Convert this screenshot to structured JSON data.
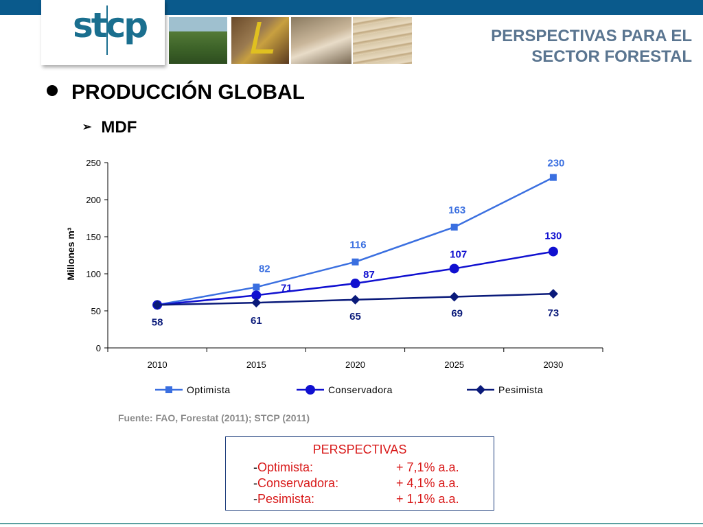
{
  "logo": {
    "text": "stcp"
  },
  "header": {
    "title_line1": "PERSPECTIVAS PARA EL",
    "title_line2": "SECTOR FORESTAL"
  },
  "bullets": {
    "main": "PRODUCCIÓN GLOBAL",
    "sub": "MDF"
  },
  "chart_data": {
    "type": "line",
    "title": "",
    "xlabel": "",
    "ylabel": "Millones m³",
    "categories": [
      "2010",
      "2015",
      "2020",
      "2025",
      "2030"
    ],
    "ylim": [
      0,
      250
    ],
    "yticks": [
      0,
      50,
      100,
      150,
      200,
      250
    ],
    "legend_position": "bottom",
    "grid": false,
    "series": [
      {
        "name": "Optimista",
        "values": [
          58,
          82,
          116,
          163,
          230
        ],
        "color": "#3a6fe0",
        "marker": "square"
      },
      {
        "name": "Conservadora",
        "values": [
          58,
          71,
          87,
          107,
          130
        ],
        "color": "#1010d0",
        "marker": "circle"
      },
      {
        "name": "Pesimista",
        "values": [
          58,
          61,
          65,
          69,
          73
        ],
        "color": "#0a1a7a",
        "marker": "diamond"
      }
    ]
  },
  "source": "Fuente: FAO, Forestat (2011); STCP (2011)",
  "perspectives": {
    "title": "PERSPECTIVAS",
    "rows": [
      {
        "dash": "-",
        "label": "Optimista:",
        "value": "+ 7,1% a.a."
      },
      {
        "dash": "-",
        "label": "Conservadora:",
        "value": "+ 4,1% a.a."
      },
      {
        "dash": "-",
        "label": "Pesimista:",
        "value": "+ 1,1% a.a."
      }
    ]
  }
}
